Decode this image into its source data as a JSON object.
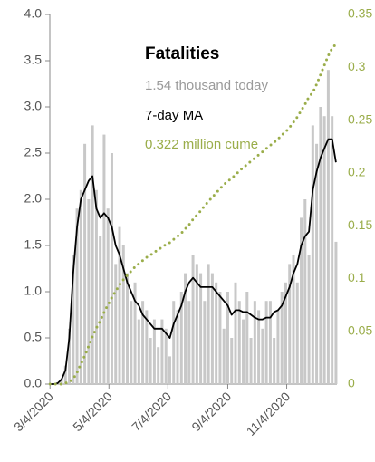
{
  "chart_data": {
    "type": "bar_line",
    "title": "Fatalities",
    "x": [
      "2020-03-04",
      "2020-03-08",
      "2020-03-12",
      "2020-03-16",
      "2020-03-20",
      "2020-03-24",
      "2020-03-28",
      "2020-04-01",
      "2020-04-05",
      "2020-04-09",
      "2020-04-13",
      "2020-04-17",
      "2020-04-21",
      "2020-04-25",
      "2020-04-29",
      "2020-05-03",
      "2020-05-07",
      "2020-05-11",
      "2020-05-15",
      "2020-05-19",
      "2020-05-23",
      "2020-05-27",
      "2020-05-31",
      "2020-06-04",
      "2020-06-08",
      "2020-06-12",
      "2020-06-16",
      "2020-06-20",
      "2020-06-24",
      "2020-06-28",
      "2020-07-02",
      "2020-07-06",
      "2020-07-10",
      "2020-07-14",
      "2020-07-18",
      "2020-07-22",
      "2020-07-26",
      "2020-07-30",
      "2020-08-03",
      "2020-08-07",
      "2020-08-11",
      "2020-08-15",
      "2020-08-19",
      "2020-08-23",
      "2020-08-27",
      "2020-08-31",
      "2020-09-04",
      "2020-09-08",
      "2020-09-12",
      "2020-09-16",
      "2020-09-20",
      "2020-09-24",
      "2020-09-28",
      "2020-10-02",
      "2020-10-06",
      "2020-10-10",
      "2020-10-14",
      "2020-10-18",
      "2020-10-22",
      "2020-10-26",
      "2020-10-30",
      "2020-11-03",
      "2020-11-07",
      "2020-11-11",
      "2020-11-15",
      "2020-11-19",
      "2020-11-23",
      "2020-11-27",
      "2020-12-01",
      "2020-12-05",
      "2020-12-09",
      "2020-12-13",
      "2020-12-17",
      "2020-12-21",
      "2020-12-25"
    ],
    "series": [
      {
        "name": "1.54 thousand today",
        "kind": "bar",
        "color": "#c8c8c8",
        "label_color": "#9a9a9a",
        "values": [
          0,
          0,
          0.01,
          0.06,
          0.2,
          0.6,
          1.4,
          1.9,
          2.1,
          2.6,
          2.0,
          2.8,
          2.1,
          1.6,
          2.7,
          1.9,
          2.5,
          1.3,
          1.7,
          1.5,
          1.2,
          0.9,
          1.1,
          0.7,
          0.9,
          0.8,
          0.5,
          0.7,
          0.4,
          0.7,
          0.6,
          0.3,
          0.9,
          0.8,
          1.0,
          1.2,
          0.9,
          1.4,
          1.3,
          1.2,
          0.9,
          1.3,
          1.2,
          1.1,
          1.0,
          0.6,
          1.0,
          0.5,
          1.1,
          0.9,
          0.7,
          1.0,
          0.5,
          0.9,
          0.8,
          0.6,
          0.9,
          0.9,
          0.5,
          0.8,
          1.0,
          1.1,
          1.3,
          1.4,
          1.1,
          1.8,
          2.0,
          1.4,
          2.8,
          2.6,
          3.0,
          2.9,
          3.4,
          2.9,
          1.54
        ]
      },
      {
        "name": "7-day MA",
        "kind": "line",
        "color": "#000000",
        "label_color": "#000000",
        "values": [
          0,
          0,
          0.01,
          0.05,
          0.15,
          0.5,
          1.2,
          1.7,
          2.0,
          2.1,
          2.2,
          2.25,
          1.9,
          1.8,
          1.85,
          1.8,
          1.7,
          1.5,
          1.4,
          1.25,
          1.1,
          1.0,
          0.9,
          0.85,
          0.75,
          0.7,
          0.65,
          0.6,
          0.6,
          0.6,
          0.55,
          0.5,
          0.65,
          0.75,
          0.85,
          1.0,
          1.1,
          1.15,
          1.1,
          1.05,
          1.05,
          1.05,
          1.05,
          1.0,
          0.95,
          0.9,
          0.85,
          0.75,
          0.8,
          0.8,
          0.78,
          0.78,
          0.75,
          0.72,
          0.7,
          0.7,
          0.72,
          0.72,
          0.78,
          0.8,
          0.85,
          0.95,
          1.05,
          1.2,
          1.3,
          1.5,
          1.6,
          1.65,
          2.1,
          2.3,
          2.45,
          2.55,
          2.65,
          2.65,
          2.4
        ]
      },
      {
        "name": "0.322 million cume",
        "kind": "dotted",
        "axis": "y2",
        "color": "#9aad4a",
        "label_color": "#9aad4a",
        "values": [
          0,
          0,
          0,
          0,
          0.001,
          0.002,
          0.005,
          0.011,
          0.019,
          0.027,
          0.036,
          0.045,
          0.053,
          0.06,
          0.068,
          0.075,
          0.082,
          0.088,
          0.094,
          0.099,
          0.103,
          0.107,
          0.111,
          0.114,
          0.117,
          0.12,
          0.122,
          0.125,
          0.127,
          0.13,
          0.132,
          0.134,
          0.137,
          0.14,
          0.143,
          0.147,
          0.151,
          0.156,
          0.16,
          0.164,
          0.169,
          0.173,
          0.177,
          0.181,
          0.185,
          0.189,
          0.192,
          0.195,
          0.198,
          0.202,
          0.205,
          0.208,
          0.211,
          0.214,
          0.217,
          0.22,
          0.223,
          0.226,
          0.229,
          0.232,
          0.236,
          0.239,
          0.243,
          0.248,
          0.253,
          0.259,
          0.265,
          0.272,
          0.276,
          0.284,
          0.293,
          0.302,
          0.311,
          0.318,
          0.322
        ]
      }
    ],
    "xlim": [
      "2020-03-01",
      "2020-12-26"
    ],
    "xticks": [
      {
        "value": "2020-03-04",
        "label": "3/4/2020"
      },
      {
        "value": "2020-05-04",
        "label": "5/4/2020"
      },
      {
        "value": "2020-07-04",
        "label": "7/4/2020"
      },
      {
        "value": "2020-09-04",
        "label": "9/4/2020"
      },
      {
        "value": "2020-11-04",
        "label": "11/4/2020"
      }
    ],
    "ylim": [
      0,
      4
    ],
    "yticks": [
      {
        "value": 0,
        "label": "0.0"
      },
      0.5,
      {
        "value": 1,
        "label": "1.0"
      },
      1.5,
      {
        "value": 2,
        "label": "2.0"
      },
      2.5,
      {
        "value": 3,
        "label": "3.0"
      },
      3.5,
      {
        "value": 4,
        "label": "4.0"
      }
    ],
    "y2lim": [
      0,
      0.35
    ],
    "y2ticks": [
      0,
      0.05,
      0.1,
      0.15,
      0.2,
      0.25,
      0.3,
      0.35
    ]
  }
}
